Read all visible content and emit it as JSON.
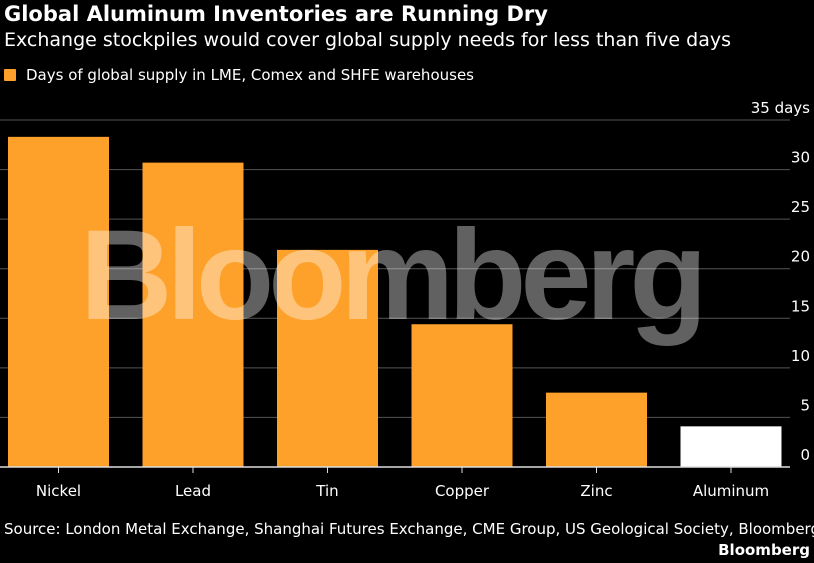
{
  "header": {
    "title": "Global Aluminum Inventories are Running Dry",
    "subtitle": "Exchange stockpiles would cover global supply needs for less than five days"
  },
  "legend": {
    "label": "Days of global supply in LME, Comex and SHFE warehouses",
    "color": "#fea12b"
  },
  "watermark": "Bloomberg",
  "footer": {
    "source": "Source: London Metal Exchange, Shanghai Futures Exchange, CME Group, US Geological Society, Bloomberg",
    "brand": "Bloomberg"
  },
  "colors": {
    "bar": "#fea12b",
    "highlight": "#ffffff",
    "grid": "#555555",
    "background": "#000000"
  },
  "chart_data": {
    "type": "bar",
    "categories": [
      "Nickel",
      "Lead",
      "Tin",
      "Copper",
      "Zinc",
      "Aluminum"
    ],
    "values": [
      33.3,
      30.7,
      21.9,
      14.4,
      7.5,
      4.1
    ],
    "highlight_category": "Aluminum",
    "ylim": [
      0,
      35
    ],
    "yticks": [
      0,
      5,
      10,
      15,
      20,
      25,
      30,
      35
    ],
    "ytick_labels": [
      "0",
      "5",
      "10",
      "15",
      "20",
      "25",
      "30",
      "35 days"
    ],
    "y_axis_side": "right",
    "grid": true,
    "legend_position": "top-left"
  }
}
